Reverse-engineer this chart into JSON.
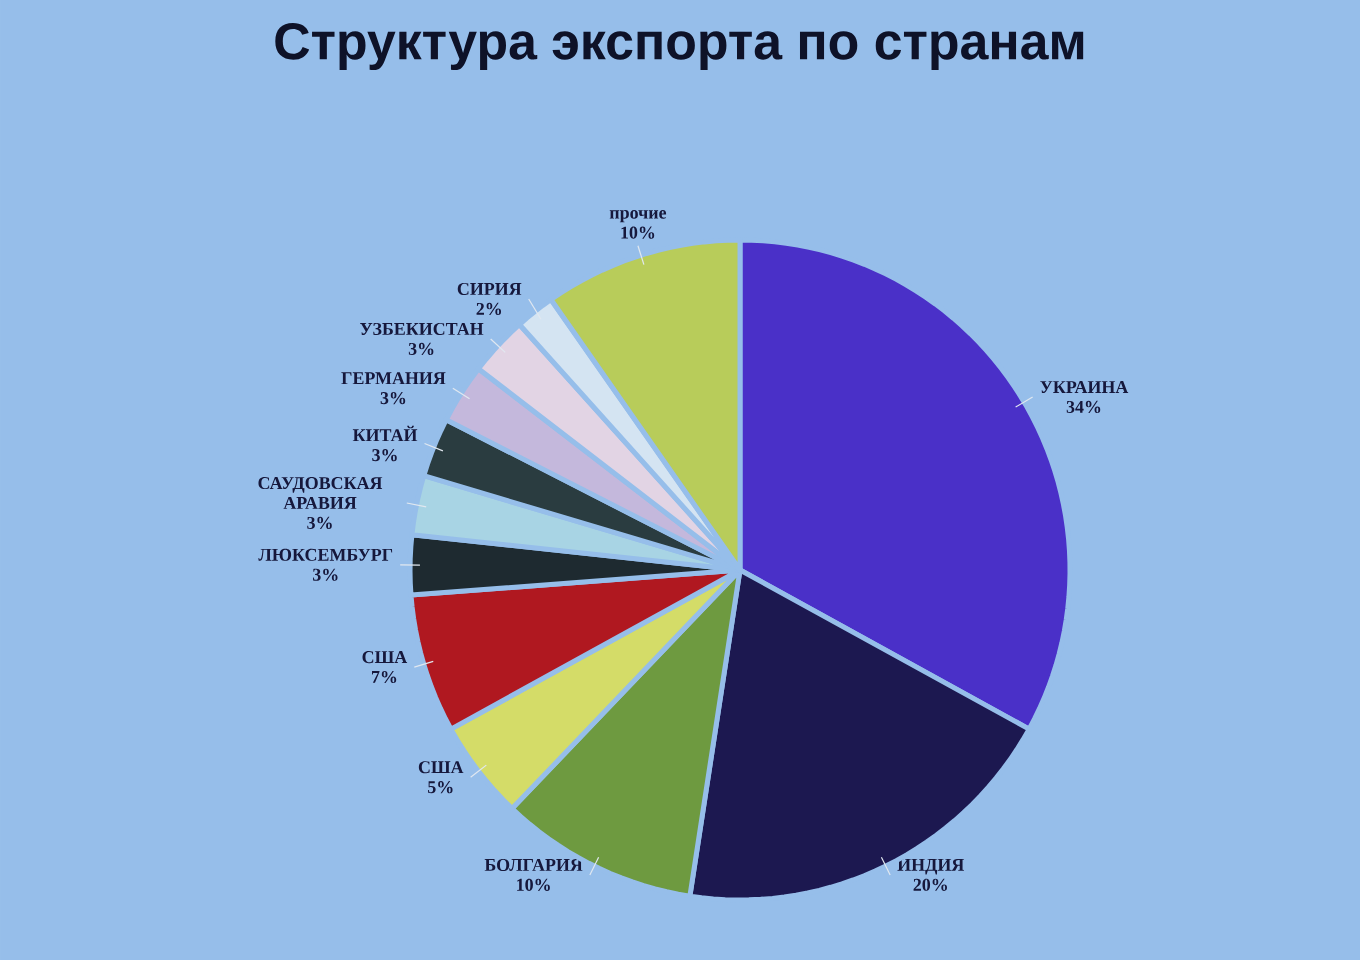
{
  "chart_data": {
    "type": "pie",
    "title": "Структура экспорта по странам",
    "categories": [
      "УКРАИНА",
      "ИНДИЯ",
      "БОЛГАРИЯ",
      "США",
      "США",
      "ЛЮКСЕМБУРГ",
      "САУДОВСКАЯ АРАВИЯ",
      "КИТАЙ",
      "ГЕРМАНИЯ",
      "УЗБЕКИСТАН",
      "СИРИЯ",
      "прочие"
    ],
    "values": [
      34,
      20,
      10,
      5,
      7,
      3,
      3,
      3,
      3,
      3,
      2,
      10
    ],
    "value_labels": [
      "34%",
      "20%",
      "10%",
      "5%",
      "7%",
      "3%",
      "3%",
      "3%",
      "3%",
      "3%",
      "2%",
      "10%"
    ],
    "colors": [
      "#4a30c8",
      "#1c1850",
      "#6e9a40",
      "#d4dc68",
      "#b01820",
      "#1e2a30",
      "#a8d4e4",
      "#2a3c40",
      "#c4b8dc",
      "#e2d4e4",
      "#d4e4f2",
      "#b8cc5a"
    ]
  }
}
